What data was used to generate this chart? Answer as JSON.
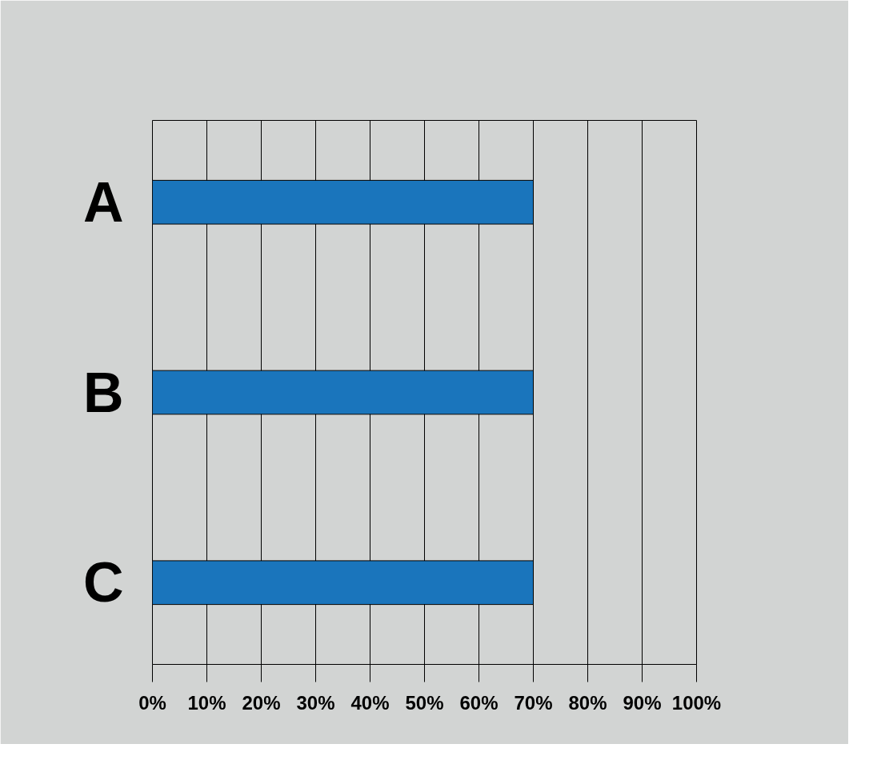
{
  "chart_data": {
    "type": "bar",
    "orientation": "horizontal",
    "categories": [
      "A",
      "B",
      "C"
    ],
    "series": [
      {
        "color": "#1a75bc",
        "values": [
          70,
          70,
          70
        ]
      }
    ],
    "xlim": [
      0,
      100
    ],
    "xticks": [
      {
        "value": 0,
        "label": "0%"
      },
      {
        "value": 10,
        "label": "10%"
      },
      {
        "value": 20,
        "label": "20%"
      },
      {
        "value": 30,
        "label": "30%"
      },
      {
        "value": 40,
        "label": "40%"
      },
      {
        "value": 50,
        "label": "50%"
      },
      {
        "value": 60,
        "label": "60%"
      },
      {
        "value": 70,
        "label": "70%"
      },
      {
        "value": 80,
        "label": "80%"
      },
      {
        "value": 90,
        "label": "90%"
      },
      {
        "value": 100,
        "label": "100%"
      }
    ],
    "grid": "x"
  }
}
